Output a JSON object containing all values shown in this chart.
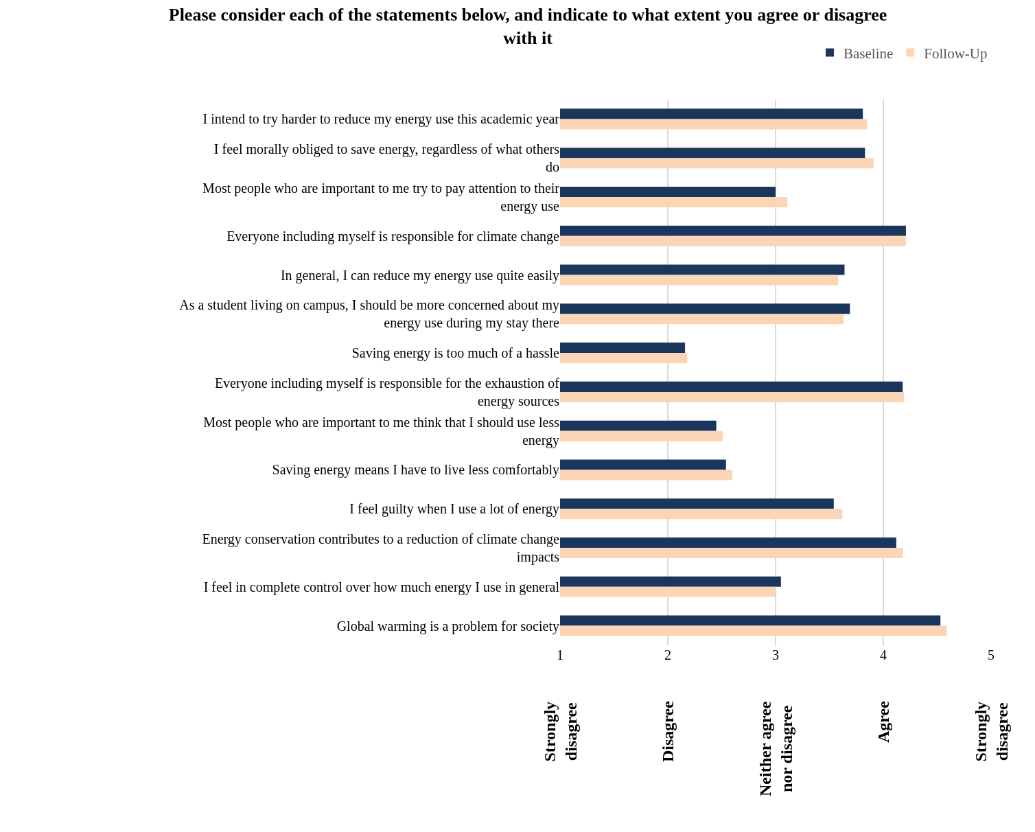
{
  "chart_data": {
    "type": "bar",
    "orientation": "horizontal",
    "title": "Please consider each of the statements below, and indicate to what extent you agree or disagree with it",
    "categories": [
      "I intend to try harder to reduce my energy use this academic year",
      "I feel morally obliged to save energy, regardless of what others do",
      "Most people who are important to me try to pay attention to their energy use",
      "Everyone including myself is responsible for climate change",
      "In general, I can reduce my energy use quite easily",
      "As a student living on campus, I should be more concerned about my energy use during my stay there",
      "Saving energy is too much of a hassle",
      "Everyone including myself is responsible for the exhaustion of energy sources",
      "Most people who are important to me think that I should use less energy",
      "Saving energy means I have to live less comfortably",
      "I feel guilty when I use a lot of energy",
      "Energy conservation contributes to a reduction of climate change impacts",
      "I feel in complete control over how much energy I use in general",
      "Global warming is a problem for society"
    ],
    "series": [
      {
        "name": "Baseline",
        "color": "#1a365d",
        "values": [
          3.81,
          3.83,
          3.0,
          4.21,
          3.64,
          3.69,
          2.16,
          4.18,
          2.45,
          2.54,
          3.54,
          4.12,
          3.05,
          4.53
        ]
      },
      {
        "name": "Follow-Up",
        "color": "#fbd5b5",
        "values": [
          3.85,
          3.91,
          3.11,
          4.21,
          3.58,
          3.63,
          2.18,
          4.19,
          2.51,
          2.6,
          3.62,
          4.18,
          3.0,
          4.59
        ]
      }
    ],
    "xlim": [
      1,
      5
    ],
    "xticks": [
      1,
      2,
      3,
      4,
      5
    ],
    "grid": "x",
    "legend": "top right",
    "annotations": [
      "Strongly disagree",
      "Disagree",
      "Neither agree nor disagree",
      "Agree",
      "Strongly disagree"
    ]
  }
}
